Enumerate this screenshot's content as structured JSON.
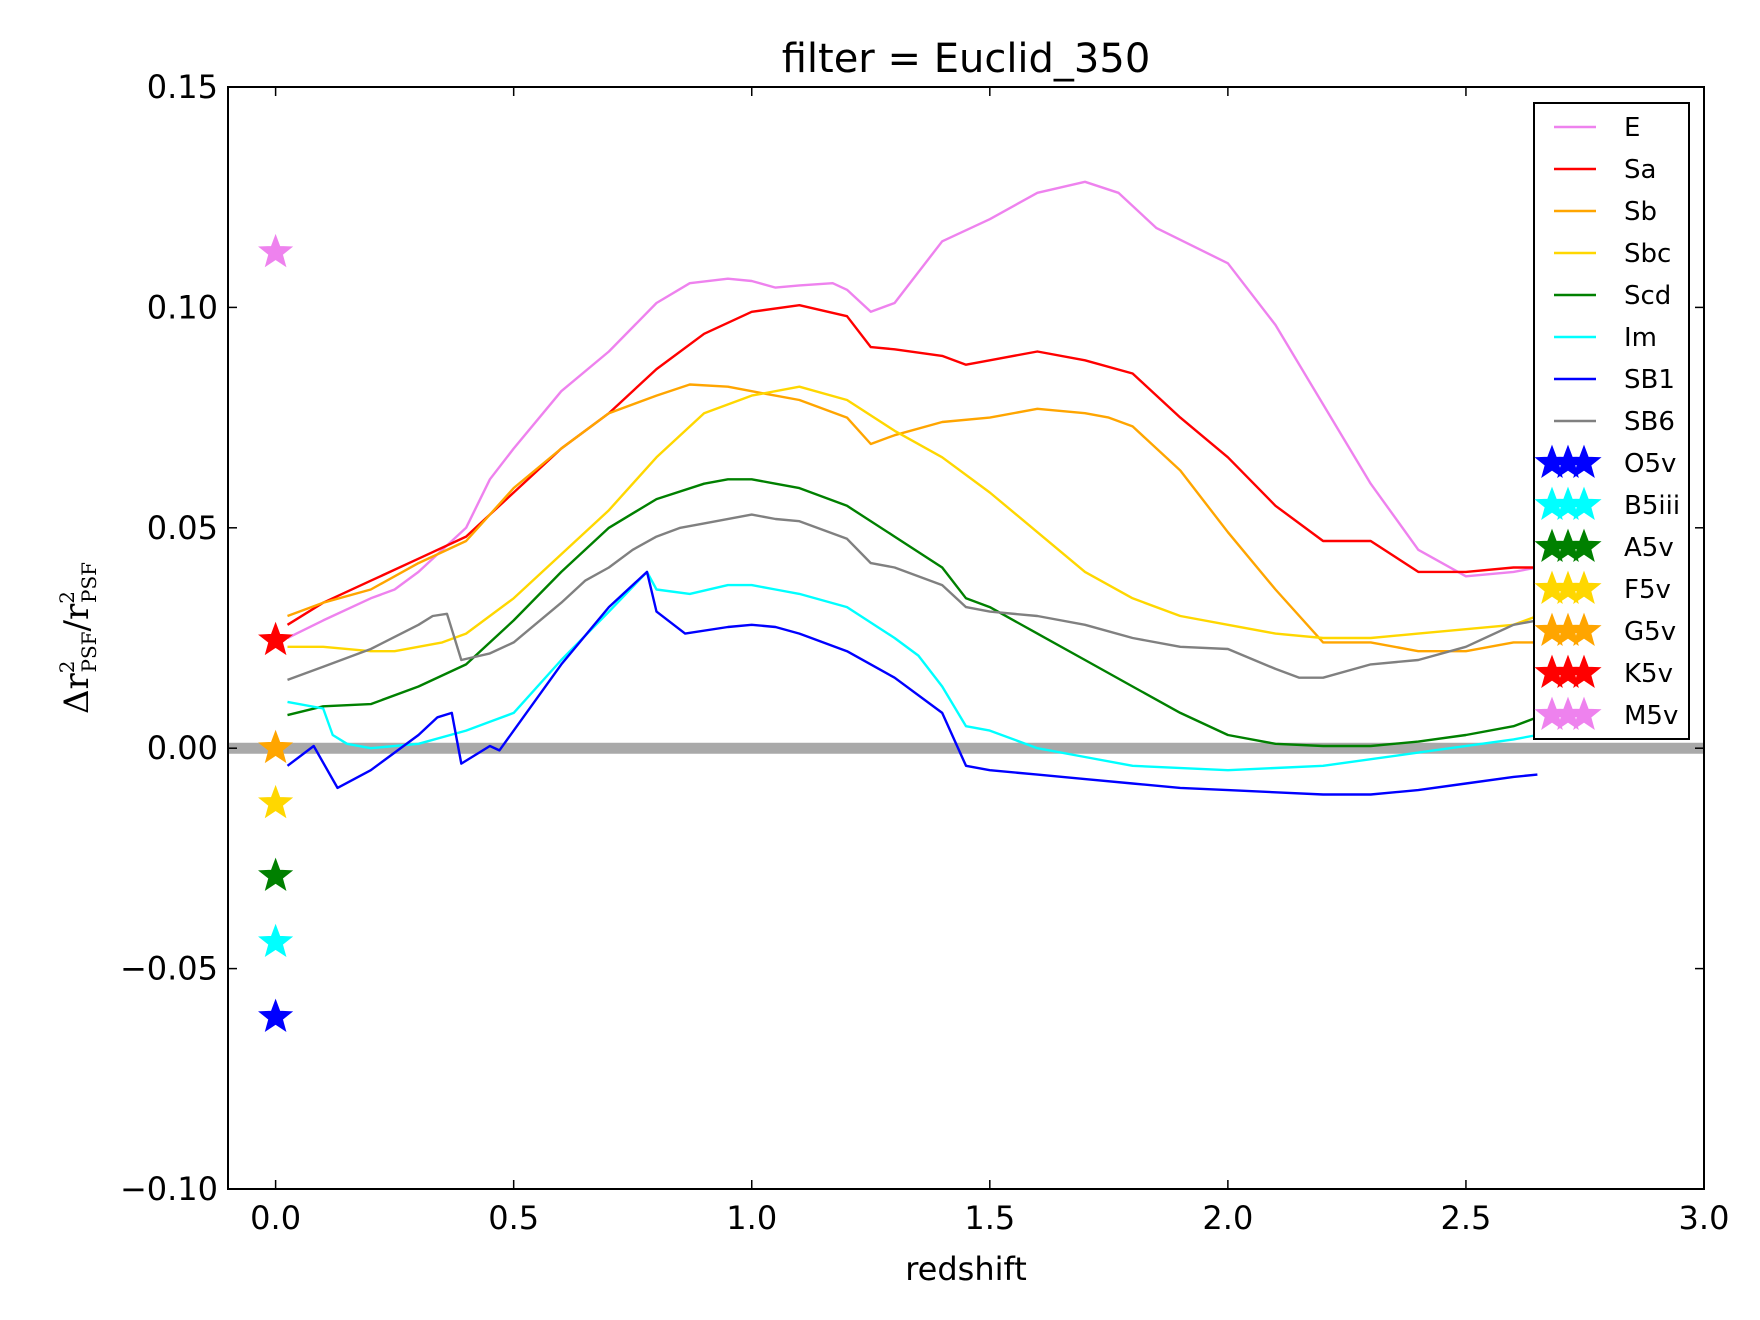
{
  "chart_data": {
    "type": "line",
    "title": "filter = Euclid_350",
    "xlabel": "redshift",
    "ylabel": {
      "main": "Δr",
      "sup": "2",
      "sub": "PSF",
      "slash": "/r"
    },
    "xlim": [
      -0.1,
      3.0
    ],
    "ylim": [
      -0.1,
      0.15
    ],
    "x_ticks": [
      0.0,
      0.5,
      1.0,
      1.5,
      2.0,
      2.5,
      3.0
    ],
    "x_tick_labels": [
      "0.0",
      "0.5",
      "1.0",
      "1.5",
      "2.0",
      "2.5",
      "3.0"
    ],
    "y_ticks": [
      -0.1,
      -0.05,
      0.0,
      0.05,
      0.1,
      0.15
    ],
    "y_tick_labels": [
      "−0.10",
      "−0.05",
      "0.00",
      "0.05",
      "0.10",
      "0.15"
    ],
    "grid": false,
    "legend_position": "top-right",
    "reference_line": {
      "y": 0.0,
      "color": "#a9a9a9"
    },
    "series": [
      {
        "name": "E",
        "color": "#ee82ee",
        "x": [
          0.025,
          0.1,
          0.2,
          0.25,
          0.3,
          0.4,
          0.45,
          0.5,
          0.6,
          0.7,
          0.8,
          0.87,
          0.95,
          1.0,
          1.05,
          1.1,
          1.17,
          1.2,
          1.25,
          1.3,
          1.4,
          1.5,
          1.6,
          1.7,
          1.77,
          1.85,
          2.0,
          2.1,
          2.2,
          2.3,
          2.4,
          2.5,
          2.6,
          2.65
        ],
        "y": [
          0.025,
          0.029,
          0.034,
          0.036,
          0.04,
          0.05,
          0.061,
          0.068,
          0.081,
          0.09,
          0.101,
          0.1055,
          0.1065,
          0.106,
          0.1045,
          0.105,
          0.1055,
          0.104,
          0.099,
          0.101,
          0.115,
          0.12,
          0.126,
          0.1285,
          0.126,
          0.118,
          0.11,
          0.096,
          0.078,
          0.06,
          0.045,
          0.039,
          0.04,
          0.041
        ]
      },
      {
        "name": "Sa",
        "color": "#ff0000",
        "x": [
          0.025,
          0.1,
          0.2,
          0.3,
          0.4,
          0.5,
          0.6,
          0.7,
          0.8,
          0.9,
          1.0,
          1.1,
          1.2,
          1.25,
          1.3,
          1.4,
          1.45,
          1.5,
          1.6,
          1.7,
          1.8,
          1.9,
          2.0,
          2.1,
          2.2,
          2.3,
          2.4,
          2.5,
          2.6,
          2.65
        ],
        "y": [
          0.028,
          0.033,
          0.038,
          0.043,
          0.048,
          0.058,
          0.068,
          0.076,
          0.086,
          0.094,
          0.099,
          0.1005,
          0.098,
          0.091,
          0.0905,
          0.089,
          0.087,
          0.088,
          0.09,
          0.088,
          0.085,
          0.075,
          0.066,
          0.055,
          0.047,
          0.047,
          0.04,
          0.04,
          0.041,
          0.041
        ]
      },
      {
        "name": "Sb",
        "color": "#ffa500",
        "x": [
          0.025,
          0.1,
          0.2,
          0.3,
          0.4,
          0.5,
          0.6,
          0.7,
          0.8,
          0.87,
          0.95,
          1.0,
          1.1,
          1.2,
          1.25,
          1.3,
          1.4,
          1.5,
          1.6,
          1.7,
          1.75,
          1.8,
          1.9,
          2.0,
          2.1,
          2.2,
          2.25,
          2.3,
          2.4,
          2.5,
          2.6,
          2.65
        ],
        "y": [
          0.03,
          0.033,
          0.036,
          0.042,
          0.047,
          0.059,
          0.068,
          0.076,
          0.08,
          0.0825,
          0.082,
          0.081,
          0.079,
          0.075,
          0.069,
          0.071,
          0.074,
          0.075,
          0.077,
          0.076,
          0.075,
          0.073,
          0.063,
          0.049,
          0.036,
          0.024,
          0.024,
          0.024,
          0.022,
          0.022,
          0.024,
          0.024
        ]
      },
      {
        "name": "Sbc",
        "color": "#ffd700",
        "x": [
          0.025,
          0.1,
          0.2,
          0.25,
          0.35,
          0.4,
          0.5,
          0.6,
          0.7,
          0.8,
          0.9,
          1.0,
          1.1,
          1.2,
          1.3,
          1.4,
          1.5,
          1.6,
          1.7,
          1.8,
          1.9,
          2.0,
          2.1,
          2.2,
          2.3,
          2.4,
          2.5,
          2.6,
          2.65
        ],
        "y": [
          0.023,
          0.023,
          0.022,
          0.022,
          0.024,
          0.026,
          0.034,
          0.044,
          0.054,
          0.066,
          0.076,
          0.08,
          0.082,
          0.079,
          0.072,
          0.066,
          0.058,
          0.049,
          0.04,
          0.034,
          0.03,
          0.028,
          0.026,
          0.025,
          0.025,
          0.026,
          0.027,
          0.028,
          0.03
        ]
      },
      {
        "name": "Scd",
        "color": "#008000",
        "x": [
          0.025,
          0.1,
          0.2,
          0.3,
          0.4,
          0.5,
          0.6,
          0.7,
          0.8,
          0.9,
          0.95,
          1.0,
          1.05,
          1.1,
          1.2,
          1.3,
          1.4,
          1.45,
          1.5,
          1.6,
          1.7,
          1.8,
          1.9,
          2.0,
          2.1,
          2.2,
          2.3,
          2.4,
          2.5,
          2.6,
          2.65
        ],
        "y": [
          0.0075,
          0.0095,
          0.01,
          0.014,
          0.019,
          0.029,
          0.04,
          0.05,
          0.0565,
          0.06,
          0.061,
          0.061,
          0.06,
          0.059,
          0.055,
          0.048,
          0.041,
          0.034,
          0.032,
          0.026,
          0.02,
          0.014,
          0.008,
          0.003,
          0.001,
          0.0005,
          0.0005,
          0.0015,
          0.003,
          0.005,
          0.007
        ]
      },
      {
        "name": "Im",
        "color": "#00ffff",
        "x": [
          0.025,
          0.1,
          0.12,
          0.15,
          0.2,
          0.3,
          0.4,
          0.45,
          0.5,
          0.6,
          0.7,
          0.78,
          0.8,
          0.87,
          0.95,
          1.0,
          1.05,
          1.1,
          1.2,
          1.3,
          1.35,
          1.4,
          1.45,
          1.5,
          1.6,
          1.7,
          1.8,
          2.0,
          2.2,
          2.4,
          2.6,
          2.65
        ],
        "y": [
          0.0105,
          0.009,
          0.003,
          0.001,
          0.0,
          0.001,
          0.004,
          0.006,
          0.008,
          0.02,
          0.031,
          0.04,
          0.036,
          0.035,
          0.037,
          0.037,
          0.036,
          0.035,
          0.032,
          0.025,
          0.021,
          0.014,
          0.005,
          0.004,
          0.0,
          -0.002,
          -0.004,
          -0.005,
          -0.004,
          -0.001,
          0.002,
          0.003
        ]
      },
      {
        "name": "SB1",
        "color": "#0000ff",
        "x": [
          0.025,
          0.08,
          0.13,
          0.2,
          0.25,
          0.3,
          0.34,
          0.37,
          0.39,
          0.45,
          0.47,
          0.5,
          0.6,
          0.7,
          0.78,
          0.8,
          0.86,
          0.95,
          1.0,
          1.05,
          1.1,
          1.2,
          1.3,
          1.4,
          1.45,
          1.5,
          1.6,
          1.7,
          1.8,
          1.9,
          2.0,
          2.1,
          2.2,
          2.3,
          2.4,
          2.5,
          2.6,
          2.65
        ],
        "y": [
          -0.004,
          0.0005,
          -0.009,
          -0.005,
          -0.001,
          0.003,
          0.007,
          0.008,
          -0.0035,
          0.0005,
          -0.0005,
          0.004,
          0.019,
          0.032,
          0.04,
          0.031,
          0.026,
          0.0275,
          0.028,
          0.0275,
          0.026,
          0.022,
          0.016,
          0.008,
          -0.004,
          -0.005,
          -0.006,
          -0.007,
          -0.008,
          -0.009,
          -0.0095,
          -0.01,
          -0.0105,
          -0.0105,
          -0.0095,
          -0.008,
          -0.0065,
          -0.006
        ]
      },
      {
        "name": "SB6",
        "color": "#808080",
        "x": [
          0.025,
          0.1,
          0.2,
          0.3,
          0.33,
          0.36,
          0.39,
          0.45,
          0.5,
          0.6,
          0.65,
          0.7,
          0.75,
          0.8,
          0.85,
          0.9,
          1.0,
          1.05,
          1.1,
          1.2,
          1.25,
          1.3,
          1.4,
          1.45,
          1.5,
          1.6,
          1.7,
          1.8,
          1.9,
          2.0,
          2.1,
          2.15,
          2.2,
          2.3,
          2.4,
          2.5,
          2.6,
          2.65
        ],
        "y": [
          0.0155,
          0.0185,
          0.0225,
          0.028,
          0.03,
          0.0305,
          0.02,
          0.0215,
          0.024,
          0.033,
          0.038,
          0.041,
          0.045,
          0.048,
          0.05,
          0.051,
          0.053,
          0.052,
          0.0515,
          0.0475,
          0.042,
          0.041,
          0.037,
          0.032,
          0.031,
          0.03,
          0.028,
          0.025,
          0.023,
          0.0225,
          0.018,
          0.016,
          0.016,
          0.019,
          0.02,
          0.023,
          0.028,
          0.029
        ]
      }
    ],
    "stars": [
      {
        "name": "O5v",
        "color": "#0000ff",
        "x": 0.0,
        "y": -0.061
      },
      {
        "name": "B5iii",
        "color": "#00ffff",
        "x": 0.0,
        "y": -0.044
      },
      {
        "name": "A5v",
        "color": "#008000",
        "x": 0.0,
        "y": -0.029
      },
      {
        "name": "F5v",
        "color": "#ffd700",
        "x": 0.0,
        "y": -0.0125
      },
      {
        "name": "G5v",
        "color": "#ffa500",
        "x": 0.0,
        "y": 0.0
      },
      {
        "name": "K5v",
        "color": "#ff0000",
        "x": 0.0,
        "y": 0.0245
      },
      {
        "name": "M5v",
        "color": "#ee82ee",
        "x": 0.0,
        "y": 0.1125
      }
    ]
  }
}
